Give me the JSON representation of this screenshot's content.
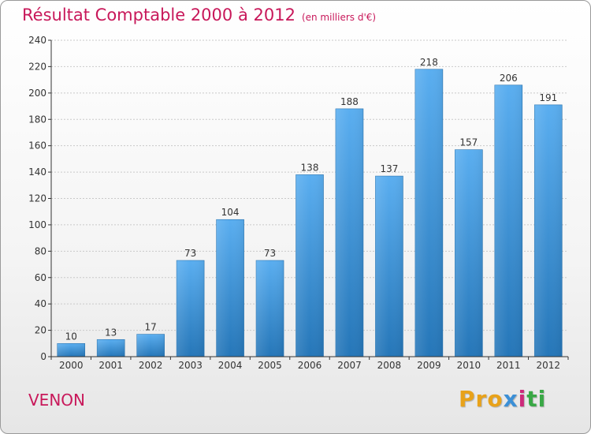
{
  "header": {
    "title": "Résultat Comptable 2000 à 2012",
    "unit": "(en milliers d'€)"
  },
  "footer": {
    "commune": "VENON",
    "logo_parts": [
      "Pro",
      "x",
      "i",
      "ti"
    ]
  },
  "colors": {
    "title": "#c8185a",
    "bar_top": "#5aaef0",
    "bar_bottom": "#2576b8",
    "axis": "#333333"
  },
  "chart_data": {
    "type": "bar",
    "title": "Résultat Comptable 2000 à 2012",
    "xlabel": "",
    "ylabel": "",
    "categories": [
      "2000",
      "2001",
      "2002",
      "2003",
      "2004",
      "2005",
      "2006",
      "2007",
      "2008",
      "2009",
      "2010",
      "2011",
      "2012"
    ],
    "values": [
      10,
      13,
      17,
      73,
      104,
      73,
      138,
      188,
      137,
      218,
      157,
      206,
      191
    ],
    "value_labels": [
      "10",
      "13",
      "17",
      "73",
      "104",
      "73",
      "138",
      "188",
      "137",
      "218",
      "157",
      "206",
      "191"
    ],
    "ylim": [
      0,
      240
    ],
    "yticks": [
      0,
      20,
      40,
      60,
      80,
      100,
      120,
      140,
      160,
      180,
      200,
      220,
      240
    ],
    "grid": true
  }
}
